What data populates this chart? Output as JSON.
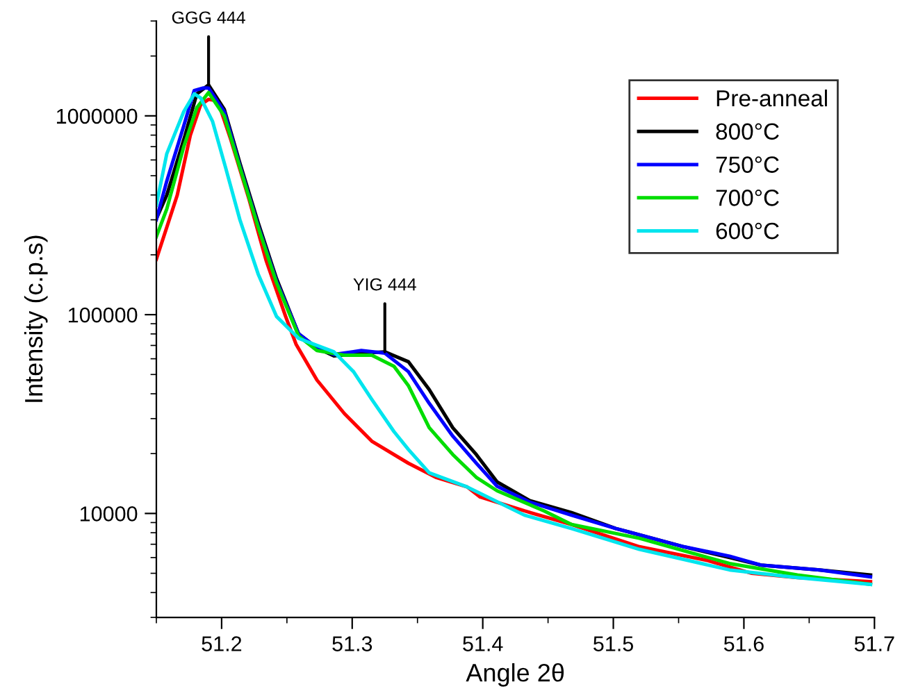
{
  "chart_data": {
    "type": "line",
    "xlabel": "Angle 2θ",
    "ylabel": "Intensity (c.p.s)",
    "log": "y",
    "xlim": [
      51.15,
      51.7
    ],
    "ylim": [
      3000,
      3000000
    ],
    "xticks": [
      {
        "value": 51.15,
        "label": null
      },
      51.2,
      {
        "value": 51.25,
        "label": null
      },
      51.3,
      {
        "value": 51.35,
        "label": null
      },
      51.4,
      {
        "value": 51.45,
        "label": null
      },
      51.5,
      {
        "value": 51.55,
        "label": null
      },
      51.6,
      {
        "value": 51.65,
        "label": null
      },
      51.7
    ],
    "yticks": [
      10000,
      100000,
      1000000
    ],
    "grid": false,
    "legend": "top right",
    "marker": "none",
    "line_style": "solid",
    "annotations": [
      {
        "text": "GGG 444",
        "x": 51.19,
        "y": 1430000
      },
      {
        "text": "YIG 444",
        "x": 51.325,
        "y": 65000
      }
    ],
    "series": [
      {
        "name": "Pre-anneal",
        "color": "#ff0000",
        "x": [
          51.15,
          51.166,
          51.176,
          51.184,
          51.19,
          51.197,
          51.207,
          51.221,
          51.234,
          51.249,
          51.257,
          51.273,
          51.294,
          51.315,
          51.343,
          51.364,
          51.388,
          51.398,
          51.432,
          51.468,
          51.52,
          51.572,
          51.606,
          51.641,
          51.697
        ],
        "values": [
          190000,
          399000,
          798000,
          1140000,
          1210000,
          1190000,
          760000,
          380000,
          188000,
          98000,
          71000,
          46900,
          31800,
          23100,
          17900,
          15200,
          13600,
          12100,
          10300,
          8800,
          6800,
          5800,
          5000,
          4760,
          4540
        ]
      },
      {
        "name": "800°C",
        "color": "#000000",
        "x": [
          51.15,
          51.158,
          51.172,
          51.181,
          51.19,
          51.202,
          51.214,
          51.228,
          51.242,
          51.259,
          51.273,
          51.286,
          51.307,
          51.325,
          51.343,
          51.359,
          51.377,
          51.395,
          51.411,
          51.436,
          51.468,
          51.502,
          51.554,
          51.589,
          51.613,
          51.658,
          51.697
        ],
        "values": [
          304000,
          399000,
          798000,
          1290000,
          1430000,
          1080000,
          578000,
          290000,
          152000,
          80000,
          68000,
          62000,
          64000,
          65000,
          58000,
          42000,
          27000,
          19800,
          14400,
          11600,
          10100,
          8400,
          6800,
          6000,
          5500,
          5200,
          4900
        ]
      },
      {
        "name": "750°C",
        "color": "#0000ff",
        "x": [
          51.15,
          51.158,
          51.171,
          51.179,
          51.186,
          51.19,
          51.202,
          51.214,
          51.228,
          51.242,
          51.259,
          51.273,
          51.286,
          51.307,
          51.325,
          51.343,
          51.359,
          51.377,
          51.395,
          51.411,
          51.436,
          51.468,
          51.502,
          51.554,
          51.589,
          51.613,
          51.658,
          51.697
        ],
        "values": [
          300000,
          470000,
          890000,
          1340000,
          1380000,
          1380000,
          1050000,
          560000,
          280000,
          148000,
          80000,
          68000,
          63000,
          66000,
          64000,
          51700,
          35800,
          24500,
          17900,
          13700,
          11400,
          9800,
          8400,
          6800,
          6100,
          5500,
          5200,
          4800
        ]
      },
      {
        "name": "700°C",
        "color": "#00dd00",
        "x": [
          51.15,
          51.158,
          51.171,
          51.181,
          51.19,
          51.202,
          51.214,
          51.228,
          51.242,
          51.259,
          51.273,
          51.294,
          51.315,
          51.332,
          51.343,
          51.359,
          51.377,
          51.395,
          51.411,
          51.447,
          51.468,
          51.52,
          51.589,
          51.641,
          51.697
        ],
        "values": [
          247000,
          340000,
          700000,
          1100000,
          1310000,
          1000000,
          550000,
          275000,
          145000,
          78000,
          66000,
          62500,
          62500,
          55000,
          44000,
          27000,
          19800,
          15200,
          13000,
          10300,
          8800,
          7500,
          5600,
          4900,
          4400
        ]
      },
      {
        "name": "600°C",
        "color": "#00e5ee",
        "x": [
          51.15,
          51.158,
          51.171,
          51.179,
          51.184,
          51.193,
          51.203,
          51.214,
          51.228,
          51.242,
          51.259,
          51.273,
          51.286,
          51.301,
          51.315,
          51.332,
          51.343,
          51.359,
          51.388,
          51.432,
          51.468,
          51.52,
          51.589,
          51.641,
          51.697
        ],
        "values": [
          356000,
          645000,
          1050000,
          1290000,
          1230000,
          940000,
          550000,
          300000,
          160000,
          98000,
          76000,
          70000,
          65000,
          51700,
          37500,
          25800,
          21000,
          16000,
          13600,
          9800,
          8400,
          6600,
          5200,
          4760,
          4400
        ]
      }
    ]
  }
}
